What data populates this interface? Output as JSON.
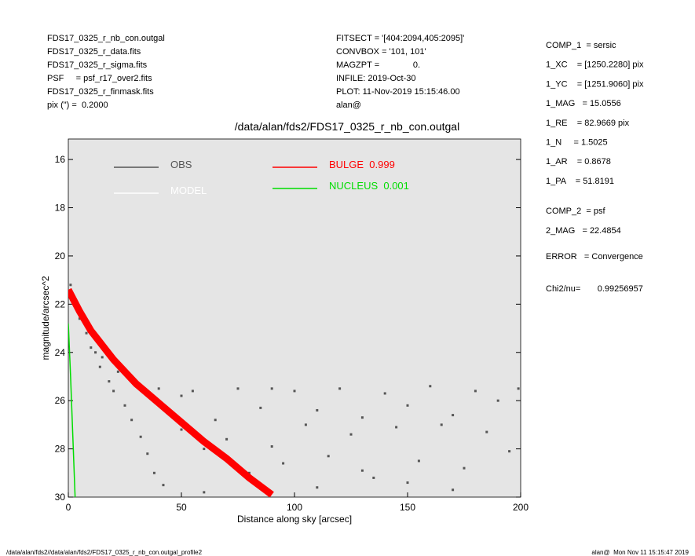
{
  "header": {
    "left": [
      "FDS17_0325_r_nb_con.outgal",
      "FDS17_0325_r_data.fits",
      "FDS17_0325_r_sigma.fits",
      "PSF     = psf_r17_over2.fits",
      "FDS17_0325_r_finmask.fits",
      "pix (\") =  0.2000"
    ],
    "center": [
      "FITSECT = '[404:2094,405:2095]'",
      "CONVBOX = '101, 101'",
      "MAGZPT =              0.",
      "INFILE: 2019-Oct-30",
      "PLOT: 11-Nov-2019 15:15:46.00",
      "alan@"
    ]
  },
  "fit_info": {
    "comp1": [
      "COMP_1  = sersic",
      "1_XC    = [1250.2280] pix",
      "1_YC    = [1251.9060] pix",
      "1_MAG   = 15.0556",
      "1_RE    = 82.9669 pix",
      "1_N     = 1.5025",
      "1_AR    = 0.8678",
      "1_PA    = 51.8191"
    ],
    "comp2": [
      "COMP_2  = psf",
      "2_MAG   = 22.4854"
    ],
    "error": "ERROR   = Convergence",
    "chi2": "Chi2/nu=       0.99256957"
  },
  "footer": {
    "left": "/data/alan/fds2//data/alan/fds2/FDS17_0325_r_nb_con.outgal_profile2",
    "right": "alan@  Mon Nov 11 15:15:47 2019"
  },
  "chart_data": {
    "type": "scatter",
    "title": "/data/alan/fds2/FDS17_0325_r_nb_con.outgal",
    "x_label": "Distance along sky [arcsec]",
    "y_label": "magnitude/arcsec^2",
    "xlim": [
      0,
      200
    ],
    "xticks": [
      0,
      50,
      100,
      150,
      200
    ],
    "ylim": [
      15.15,
      30
    ],
    "y_inverted": true,
    "yticks": [
      16,
      18,
      20,
      22,
      24,
      26,
      28,
      30
    ],
    "background": "#e5e5e5",
    "series": [
      {
        "name": "OBS",
        "type": "scatter",
        "color": "#555555",
        "x": [
          1,
          2,
          3,
          5,
          6,
          8,
          10,
          12,
          14,
          15,
          18,
          20,
          22,
          25,
          28,
          30,
          32,
          35,
          38,
          40,
          45,
          50,
          55,
          60,
          65,
          70,
          75,
          80,
          85,
          90,
          95,
          100,
          105,
          110,
          115,
          120,
          125,
          130,
          135,
          140,
          145,
          150,
          155,
          160,
          165,
          170,
          175,
          180,
          185,
          190,
          195,
          199,
          42,
          60,
          110,
          170,
          130,
          90,
          50,
          150
        ],
        "values": [
          21.2,
          21.6,
          22.0,
          22.6,
          22.4,
          23.2,
          23.8,
          24.0,
          24.6,
          24.2,
          25.2,
          25.6,
          24.8,
          26.2,
          26.8,
          25.4,
          27.5,
          28.2,
          29.0,
          25.5,
          26.5,
          27.2,
          25.6,
          28.0,
          26.8,
          27.6,
          25.5,
          29.0,
          26.3,
          27.9,
          28.6,
          25.6,
          27.0,
          26.4,
          28.3,
          25.5,
          27.4,
          26.7,
          29.2,
          25.7,
          27.1,
          26.2,
          28.5,
          25.4,
          27.0,
          26.6,
          28.8,
          25.6,
          27.3,
          26.0,
          28.1,
          25.5,
          29.5,
          29.8,
          29.6,
          29.7,
          28.9,
          25.5,
          25.8,
          29.4
        ]
      },
      {
        "name": "MODEL",
        "type": "line",
        "color": "#ffffff",
        "x": [
          0,
          5,
          10,
          20,
          30,
          40,
          50,
          60,
          70,
          80,
          90
        ],
        "values": [
          21.4,
          22.3,
          23.1,
          24.3,
          25.3,
          26.1,
          26.9,
          27.7,
          28.4,
          29.2,
          29.9
        ]
      },
      {
        "name": "BULGE  0.999",
        "type": "line",
        "color": "#ff0000",
        "x": [
          0,
          5,
          10,
          20,
          30,
          40,
          50,
          60,
          70,
          80,
          90
        ],
        "values": [
          21.4,
          22.3,
          23.1,
          24.3,
          25.3,
          26.1,
          26.9,
          27.7,
          28.4,
          29.2,
          29.9
        ]
      },
      {
        "name": "NUCLEUS  0.001",
        "type": "line",
        "color": "#00dd00",
        "x": [
          0,
          1,
          2,
          3
        ],
        "values": [
          22.8,
          25.0,
          27.5,
          30.0
        ]
      }
    ]
  }
}
